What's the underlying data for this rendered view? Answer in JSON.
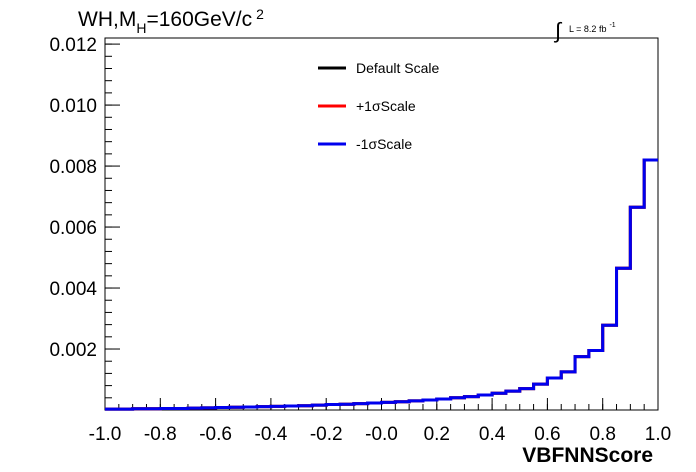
{
  "chart_data": {
    "type": "histogram",
    "title_main": "WH,M",
    "title_sub": "H",
    "title_tail": "=160GeV/c",
    "title_sup": "2",
    "lumi_label": "L = 8.2 fb",
    "lumi_sup": "-1",
    "xlabel": "VBFNNScore",
    "ylabel": "",
    "xlim": [
      -1.0,
      1.0
    ],
    "ylim": [
      0.0,
      0.0122
    ],
    "xticks": [
      -1.0,
      -0.8,
      -0.6,
      -0.4,
      -0.2,
      0.0,
      0.2,
      0.4,
      0.6,
      0.8,
      1.0
    ],
    "xtick_labels": [
      "-1.0",
      "-0.8",
      "-0.6",
      "-0.4",
      "-0.2",
      "-0.0",
      "0.2",
      "0.4",
      "0.6",
      "0.8",
      "1.0"
    ],
    "yticks": [
      0.002,
      0.004,
      0.006,
      0.008,
      0.01,
      0.012
    ],
    "ytick_labels": [
      "0.002",
      "0.004",
      "0.006",
      "0.008",
      "0.010",
      "0.012"
    ],
    "grid": false,
    "legend_position": "top-center",
    "bin_edges": [
      -1.0,
      -0.95,
      -0.9,
      -0.85,
      -0.8,
      -0.75,
      -0.7,
      -0.65,
      -0.6,
      -0.55,
      -0.5,
      -0.45,
      -0.4,
      -0.35,
      -0.3,
      -0.25,
      -0.2,
      -0.15,
      -0.1,
      -0.05,
      0.0,
      0.05,
      0.1,
      0.15,
      0.2,
      0.25,
      0.3,
      0.35,
      0.4,
      0.45,
      0.5,
      0.55,
      0.6,
      0.65,
      0.7,
      0.75,
      0.8,
      0.85,
      0.9,
      0.95,
      1.0
    ],
    "series": [
      {
        "name": "Default Scale",
        "color": "#000000",
        "values": [
          3e-05,
          3e-05,
          4e-05,
          4e-05,
          5e-05,
          5e-05,
          6e-05,
          7e-05,
          8e-05,
          9e-05,
          0.0001,
          0.00011,
          0.00012,
          0.00013,
          0.00014,
          0.00016,
          0.00018,
          0.00019,
          0.00021,
          0.00023,
          0.00025,
          0.00027,
          0.0003,
          0.00033,
          0.00036,
          0.0004,
          0.00044,
          0.00049,
          0.00055,
          0.00062,
          0.0007,
          0.00085,
          0.00105,
          0.00125,
          0.00175,
          0.00195,
          0.00278,
          0.00465,
          0.00665,
          0.0082
        ]
      },
      {
        "name": "+1σScale",
        "color": "#ff0000",
        "values": [
          3e-05,
          3e-05,
          4e-05,
          4e-05,
          5e-05,
          5e-05,
          6e-05,
          7e-05,
          8e-05,
          9e-05,
          0.0001,
          0.00011,
          0.00012,
          0.00013,
          0.00014,
          0.00016,
          0.00018,
          0.00019,
          0.00021,
          0.00023,
          0.00025,
          0.00027,
          0.0003,
          0.00033,
          0.00036,
          0.0004,
          0.00044,
          0.00049,
          0.00055,
          0.00062,
          0.0007,
          0.00085,
          0.00105,
          0.00125,
          0.00175,
          0.00195,
          0.00278,
          0.00465,
          0.00665,
          0.0082
        ]
      },
      {
        "name": "-1σScale",
        "color": "#0000ee",
        "values": [
          3e-05,
          3e-05,
          4e-05,
          4e-05,
          5e-05,
          5e-05,
          6e-05,
          7e-05,
          8e-05,
          9e-05,
          0.0001,
          0.00011,
          0.00012,
          0.00013,
          0.00014,
          0.00016,
          0.00018,
          0.00019,
          0.00021,
          0.00023,
          0.00025,
          0.00027,
          0.0003,
          0.00033,
          0.00036,
          0.0004,
          0.00044,
          0.00049,
          0.00055,
          0.00062,
          0.0007,
          0.00085,
          0.00105,
          0.00125,
          0.00175,
          0.00195,
          0.00278,
          0.00465,
          0.00665,
          0.0082
        ]
      }
    ]
  }
}
